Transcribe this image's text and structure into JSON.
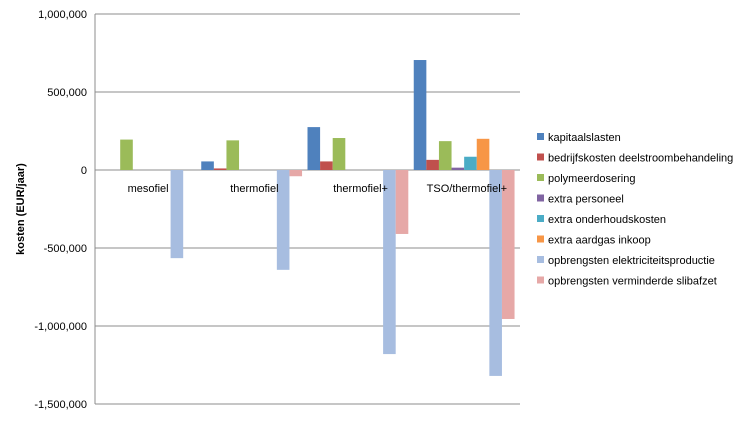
{
  "chart_data": {
    "type": "bar",
    "categories": [
      "mesofiel",
      "thermofiel",
      "thermofiel+",
      "TSO/thermofiel+"
    ],
    "ylabel": "kosten (EUR/jaar)",
    "xlabel": "",
    "ylim": [
      -1500000,
      1000000
    ],
    "yticks": [
      1000000,
      500000,
      0,
      -500000,
      -1000000,
      -1500000
    ],
    "ytick_labels": [
      "1,000,000",
      "500,000",
      "0",
      "-500,000",
      "-1,000,000",
      "-1,500,000"
    ],
    "grid": true,
    "legend_position": "right",
    "series": [
      {
        "name": "kapitaalslasten",
        "color": "#4f81bd",
        "values": [
          0,
          55000,
          275000,
          705000
        ]
      },
      {
        "name": "bedrijfskosten deelstroombehandeling",
        "color": "#c0504d",
        "values": [
          0,
          10000,
          55000,
          65000
        ]
      },
      {
        "name": "polymeerdosering",
        "color": "#9bbb59",
        "values": [
          195000,
          190000,
          205000,
          185000
        ]
      },
      {
        "name": "extra personeel",
        "color": "#8064a2",
        "values": [
          0,
          0,
          0,
          15000
        ]
      },
      {
        "name": "extra onderhoudskosten",
        "color": "#4bacc6",
        "values": [
          0,
          0,
          0,
          85000
        ]
      },
      {
        "name": "extra aardgas inkoop",
        "color": "#f79646",
        "values": [
          0,
          0,
          0,
          200000
        ]
      },
      {
        "name": "opbrengsten elektriciteitsproductie",
        "color": "#a7bde0",
        "values": [
          -565000,
          -640000,
          -1180000,
          -1320000
        ]
      },
      {
        "name": "opbrengsten verminderde slibafzet",
        "color": "#e6a8a7",
        "values": [
          0,
          -40000,
          -410000,
          -955000
        ]
      }
    ]
  }
}
